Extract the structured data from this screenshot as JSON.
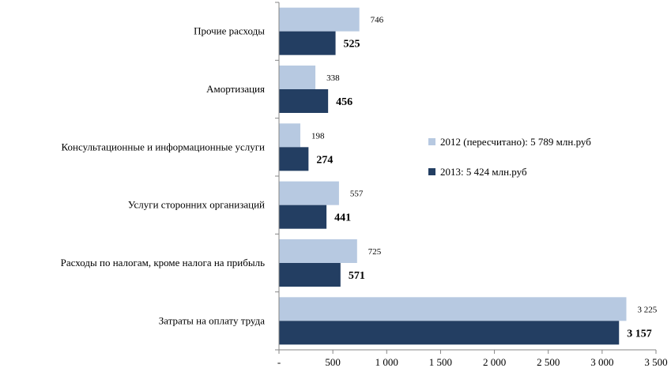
{
  "chart_data": {
    "type": "bar",
    "orientation": "horizontal",
    "categories": [
      "Затраты на оплату труда",
      "Расходы по налогам, кроме налога на прибыль",
      "Услуги сторонних организаций",
      "Консультационные и информационные услуги",
      "Амортизация",
      "Прочие расходы"
    ],
    "series": [
      {
        "name": "2012 (пересчитано): 5 789 млн.руб",
        "color": "#b7c9e1",
        "values": [
          3225,
          725,
          557,
          198,
          338,
          746
        ],
        "value_labels": [
          "3 225",
          "725",
          "557",
          "198",
          "338",
          "746"
        ]
      },
      {
        "name": "2013: 5 424 млн.руб",
        "color": "#233e62",
        "values": [
          3157,
          571,
          441,
          274,
          456,
          525
        ],
        "value_labels": [
          "3 157",
          "571",
          "441",
          "274",
          "456",
          "525"
        ]
      }
    ],
    "xlim": [
      0,
      3500
    ],
    "xticks": [
      0,
      500,
      1000,
      1500,
      2000,
      2500,
      3000,
      3500
    ],
    "xtick_labels": [
      "-",
      "500",
      "1 000",
      "1 500",
      "2 000",
      "2 500",
      "3 000",
      "3 500"
    ],
    "grid": false,
    "legend_position": "right"
  }
}
